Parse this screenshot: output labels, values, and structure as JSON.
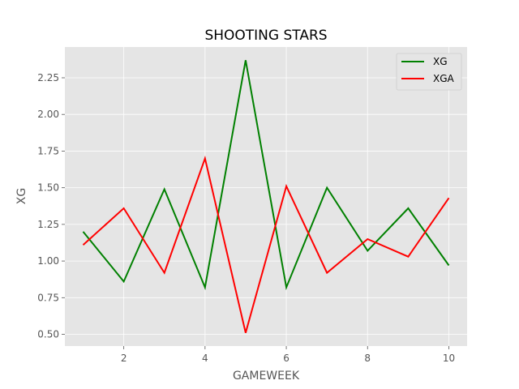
{
  "chart_data": {
    "type": "line",
    "title": "SHOOTING STARS",
    "xlabel": "GAMEWEEK",
    "ylabel": "XG",
    "x": [
      1,
      2,
      3,
      4,
      5,
      6,
      7,
      8,
      9,
      10
    ],
    "xlim": [
      0.55,
      10.45
    ],
    "ylim": [
      0.42,
      2.46
    ],
    "xticks": [
      2,
      4,
      6,
      8,
      10
    ],
    "xtick_labels": [
      "2",
      "4",
      "6",
      "8",
      "10"
    ],
    "yticks": [
      0.5,
      0.75,
      1.0,
      1.25,
      1.5,
      1.75,
      2.0,
      2.25
    ],
    "ytick_labels": [
      "0.50",
      "0.75",
      "1.00",
      "1.25",
      "1.50",
      "1.75",
      "2.00",
      "2.25"
    ],
    "grid": true,
    "legend_position": "top-right",
    "series": [
      {
        "name": "XG",
        "color": "#008000",
        "values": [
          1.2,
          0.86,
          1.49,
          0.82,
          2.37,
          0.82,
          1.5,
          1.07,
          1.36,
          0.97
        ]
      },
      {
        "name": "XGA",
        "color": "#ff0000",
        "values": [
          1.11,
          1.36,
          0.92,
          1.7,
          0.51,
          1.51,
          0.92,
          1.15,
          1.03,
          1.43
        ]
      }
    ]
  }
}
